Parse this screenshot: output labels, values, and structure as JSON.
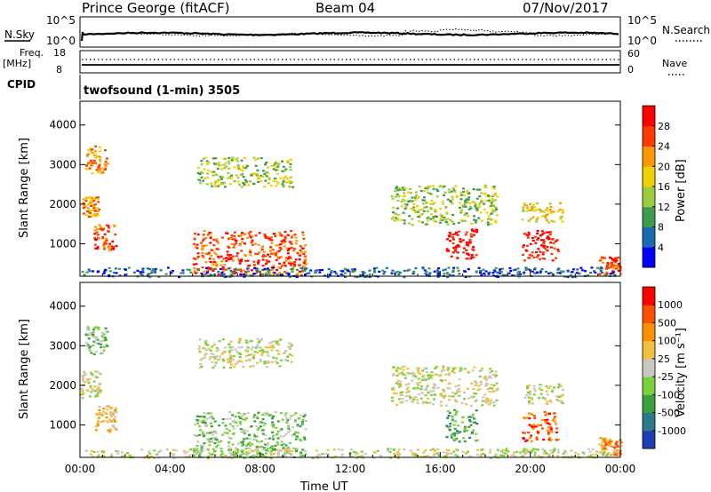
{
  "header": {
    "station": "Prince George (fitACF)",
    "beam": "Beam 04",
    "date": "07/Nov/2017"
  },
  "noise_panel": {
    "left_label": "N.Sky",
    "right_label": "N.Search",
    "left_ticks": [
      "10^5",
      "10^0"
    ],
    "right_ticks": [
      "10^5",
      "10^0"
    ]
  },
  "freq_panel": {
    "left_label_1": "Freq.",
    "left_label_2": "[MHz]",
    "right_label": "Nave",
    "left_ticks": [
      "18",
      "8"
    ],
    "right_ticks": [
      "60",
      "0"
    ]
  },
  "cpid_panel": {
    "label": "CPID",
    "program": "twofsound (1-min) 3505"
  },
  "chart_data": [
    {
      "type": "heatmap",
      "quantity": "power",
      "ylabel": "Slant Range [km]",
      "xlabel": "",
      "ylim": [
        180,
        4600
      ],
      "yticks": [
        "1000",
        "2000",
        "3000",
        "4000"
      ],
      "colorbar": {
        "label": "Power [dB]",
        "ticks": [
          "4",
          "8",
          "12",
          "16",
          "20",
          "24",
          "28"
        ],
        "colors": [
          "#0000ff",
          "#1a6ab0",
          "#3e9a4e",
          "#9ccc3c",
          "#f0d000",
          "#ff9800",
          "#ff3c00",
          "#ff0000"
        ]
      },
      "regions": [
        {
          "t0": 0.2,
          "t1": 1.2,
          "r0": 2800,
          "r1": 3500,
          "level": 5
        },
        {
          "t0": 0.1,
          "t1": 0.8,
          "r0": 1700,
          "r1": 2200,
          "level": 5
        },
        {
          "t0": 0.6,
          "t1": 1.6,
          "r0": 850,
          "r1": 1500,
          "level": 6
        },
        {
          "t0": 5.2,
          "t1": 9.4,
          "r0": 2450,
          "r1": 3200,
          "level": 3
        },
        {
          "t0": 5.0,
          "t1": 10.0,
          "r0": 200,
          "r1": 1350,
          "level": 6
        },
        {
          "t0": 13.8,
          "t1": 18.5,
          "r0": 1500,
          "r1": 2500,
          "level": 3
        },
        {
          "t0": 16.2,
          "t1": 17.6,
          "r0": 600,
          "r1": 1400,
          "level": 7
        },
        {
          "t0": 19.6,
          "t1": 21.4,
          "r0": 1550,
          "r1": 2050,
          "level": 4
        },
        {
          "t0": 19.6,
          "t1": 21.2,
          "r0": 600,
          "r1": 1350,
          "level": 7
        },
        {
          "t0": 23.0,
          "t1": 24.0,
          "r0": 250,
          "r1": 700,
          "level": 6
        },
        {
          "t0": 0.0,
          "t1": 24.0,
          "r0": 180,
          "r1": 420,
          "level": 1
        }
      ]
    },
    {
      "type": "heatmap",
      "quantity": "velocity",
      "ylabel": "Slant Range [km]",
      "xlabel": "Time UT",
      "ylim": [
        180,
        4600
      ],
      "yticks": [
        "1000",
        "2000",
        "3000",
        "4000"
      ],
      "xticks": [
        "00:00",
        "04:00",
        "08:00",
        "12:00",
        "16:00",
        "20:00",
        "00:00"
      ],
      "colorbar": {
        "label": "Velocity [m s⁻¹]",
        "ticks": [
          "1000",
          "500",
          "100",
          "25",
          "-25",
          "-100",
          "-500",
          "-1000"
        ],
        "colors": [
          "#1e3fb4",
          "#2a7a8a",
          "#3ca03c",
          "#7ad23a",
          "#c8c8c0",
          "#f0c040",
          "#ff9000",
          "#ff5000",
          "#ff0000"
        ]
      },
      "regions": [
        {
          "t0": 0.2,
          "t1": 1.2,
          "r0": 2800,
          "r1": 3500,
          "level": 3
        },
        {
          "t0": 0.0,
          "t1": 0.9,
          "r0": 1700,
          "r1": 2400,
          "level": 4
        },
        {
          "t0": 0.6,
          "t1": 1.6,
          "r0": 850,
          "r1": 1500,
          "level": 5
        },
        {
          "t0": 5.2,
          "t1": 9.4,
          "r0": 2450,
          "r1": 3200,
          "level": 4
        },
        {
          "t0": 5.0,
          "t1": 10.0,
          "r0": 200,
          "r1": 1350,
          "level": 3
        },
        {
          "t0": 13.8,
          "t1": 18.5,
          "r0": 1500,
          "r1": 2500,
          "level": 4
        },
        {
          "t0": 16.2,
          "t1": 17.6,
          "r0": 600,
          "r1": 1400,
          "level": 2
        },
        {
          "t0": 19.6,
          "t1": 21.4,
          "r0": 1550,
          "r1": 2050,
          "level": 4
        },
        {
          "t0": 19.6,
          "t1": 21.2,
          "r0": 600,
          "r1": 1350,
          "level": 7
        },
        {
          "t0": 23.0,
          "t1": 24.0,
          "r0": 250,
          "r1": 700,
          "level": 6
        },
        {
          "t0": 0.0,
          "t1": 24.0,
          "r0": 180,
          "r1": 420,
          "level": 4
        }
      ]
    }
  ]
}
